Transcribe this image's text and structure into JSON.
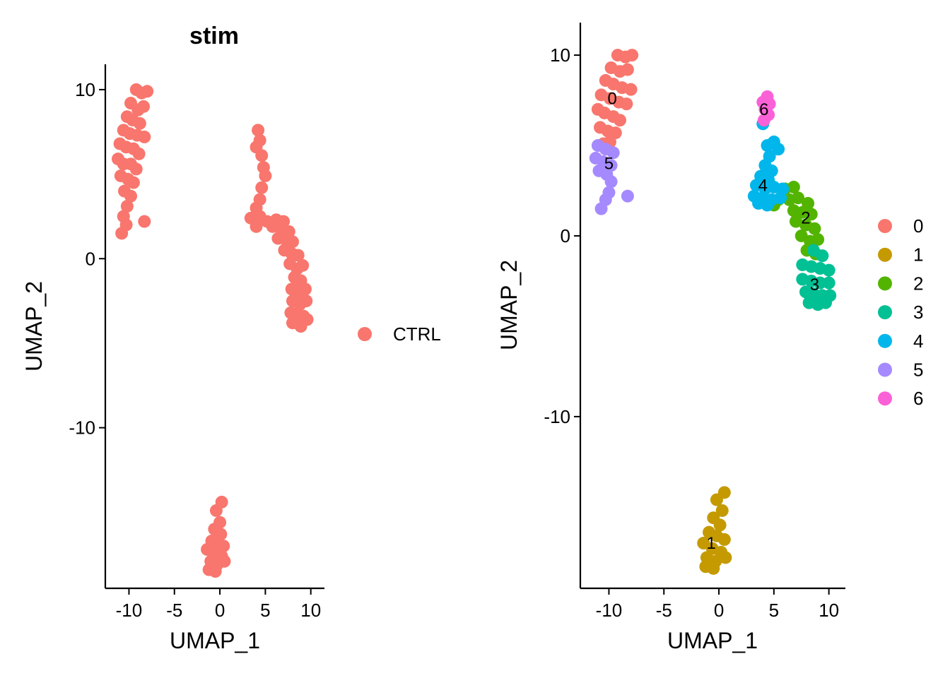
{
  "chart_data": [
    {
      "type": "scatter",
      "title": "stim",
      "xlabel": "UMAP_1",
      "ylabel": "UMAP_2",
      "xlim": [
        -12.6,
        11.5
      ],
      "ylim": [
        -19.5,
        11.5
      ],
      "xticks": [
        -10,
        -5,
        0,
        5,
        10
      ],
      "xtick_labels": [
        "-10",
        "-5",
        "0",
        "5",
        "10"
      ],
      "yticks": [
        10,
        0,
        -10
      ],
      "ytick_labels": [
        "10",
        "0",
        "-10"
      ],
      "grid": false,
      "legend": {
        "position": "right",
        "entries": [
          {
            "label": "CTRL",
            "color": "#F8766D"
          }
        ]
      },
      "series": [
        {
          "name": "CTRL",
          "color": "#F8766D",
          "points": [
            [
              -9.2,
              10.0
            ],
            [
              -8.6,
              9.8
            ],
            [
              -8.0,
              9.9
            ],
            [
              -9.8,
              9.2
            ],
            [
              -9.0,
              8.8
            ],
            [
              -8.4,
              9.0
            ],
            [
              -10.2,
              8.4
            ],
            [
              -9.6,
              8.2
            ],
            [
              -8.8,
              8.0
            ],
            [
              -10.6,
              7.6
            ],
            [
              -9.9,
              7.4
            ],
            [
              -9.1,
              7.3
            ],
            [
              -8.3,
              7.2
            ],
            [
              -11.0,
              6.8
            ],
            [
              -10.3,
              6.6
            ],
            [
              -9.5,
              6.5
            ],
            [
              -8.9,
              6.2
            ],
            [
              -11.2,
              5.9
            ],
            [
              -10.6,
              5.6
            ],
            [
              -9.8,
              5.6
            ],
            [
              -9.2,
              5.3
            ],
            [
              -10.9,
              4.9
            ],
            [
              -10.1,
              4.7
            ],
            [
              -9.5,
              4.5
            ],
            [
              -10.5,
              4.0
            ],
            [
              -9.8,
              3.7
            ],
            [
              -10.2,
              3.1
            ],
            [
              -10.6,
              2.5
            ],
            [
              -10.3,
              2.0
            ],
            [
              -10.8,
              1.5
            ],
            [
              -8.3,
              2.2
            ],
            [
              4.2,
              7.6
            ],
            [
              4.4,
              7.0
            ],
            [
              4.0,
              6.6
            ],
            [
              4.6,
              6.1
            ],
            [
              4.8,
              5.4
            ],
            [
              5.0,
              4.9
            ],
            [
              4.6,
              4.2
            ],
            [
              4.4,
              3.5
            ],
            [
              4.0,
              3.0
            ],
            [
              3.4,
              2.4
            ],
            [
              4.4,
              2.5
            ],
            [
              5.2,
              2.2
            ],
            [
              4.0,
              1.9
            ],
            [
              6.2,
              2.3
            ],
            [
              7.0,
              2.2
            ],
            [
              5.8,
              1.9
            ],
            [
              6.8,
              1.7
            ],
            [
              7.6,
              1.6
            ],
            [
              6.4,
              1.2
            ],
            [
              7.3,
              1.1
            ],
            [
              8.0,
              1.0
            ],
            [
              7.1,
              0.5
            ],
            [
              7.9,
              0.3
            ],
            [
              8.6,
              0.2
            ],
            [
              7.7,
              -0.3
            ],
            [
              8.5,
              -0.6
            ],
            [
              9.1,
              -0.4
            ],
            [
              8.2,
              -1.1
            ],
            [
              8.9,
              -1.3
            ],
            [
              7.9,
              -1.8
            ],
            [
              8.6,
              -2.0
            ],
            [
              9.4,
              -1.8
            ],
            [
              8.0,
              -2.5
            ],
            [
              8.8,
              -2.7
            ],
            [
              9.5,
              -2.5
            ],
            [
              7.8,
              -3.2
            ],
            [
              8.5,
              -3.3
            ],
            [
              9.2,
              -3.4
            ],
            [
              8.0,
              -3.8
            ],
            [
              8.9,
              -4.0
            ],
            [
              9.6,
              -3.6
            ],
            [
              0.2,
              -14.4
            ],
            [
              -0.4,
              -14.9
            ],
            [
              0.0,
              -15.6
            ],
            [
              -0.6,
              -16.0
            ],
            [
              0.1,
              -16.3
            ],
            [
              -0.9,
              -16.7
            ],
            [
              -0.2,
              -16.9
            ],
            [
              0.4,
              -17.0
            ],
            [
              -1.4,
              -17.2
            ],
            [
              -0.6,
              -17.4
            ],
            [
              0.2,
              -17.6
            ],
            [
              -1.0,
              -17.9
            ],
            [
              -0.3,
              -18.1
            ],
            [
              0.5,
              -17.9
            ],
            [
              -1.2,
              -18.4
            ],
            [
              -0.5,
              -18.5
            ]
          ]
        }
      ]
    },
    {
      "type": "scatter",
      "title": "",
      "xlabel": "UMAP_1",
      "ylabel": "UMAP_2",
      "xlim": [
        -12.6,
        11.5
      ],
      "ylim": [
        -19.5,
        11.8
      ],
      "xticks": [
        -10,
        -5,
        0,
        5,
        10
      ],
      "xtick_labels": [
        "-10",
        "-5",
        "0",
        "5",
        "10"
      ],
      "yticks": [
        10,
        0,
        -10
      ],
      "ytick_labels": [
        "10",
        "0",
        "-10"
      ],
      "grid": false,
      "legend": {
        "position": "right",
        "entries": [
          {
            "label": "0",
            "color": "#F8766D"
          },
          {
            "label": "1",
            "color": "#C49A00"
          },
          {
            "label": "2",
            "color": "#53B400"
          },
          {
            "label": "3",
            "color": "#00C094"
          },
          {
            "label": "4",
            "color": "#00B6EB"
          },
          {
            "label": "5",
            "color": "#A58AFF"
          },
          {
            "label": "6",
            "color": "#FB61D7"
          }
        ]
      },
      "series": [
        {
          "name": "0",
          "color": "#F8766D",
          "label_at": [
            -9.7,
            7.6
          ],
          "points": [
            [
              -9.2,
              10.0
            ],
            [
              -8.5,
              9.9
            ],
            [
              -7.9,
              10.0
            ],
            [
              -9.8,
              9.3
            ],
            [
              -9.0,
              9.1
            ],
            [
              -8.3,
              9.2
            ],
            [
              -10.3,
              8.6
            ],
            [
              -9.6,
              8.4
            ],
            [
              -8.8,
              8.2
            ],
            [
              -8.0,
              8.1
            ],
            [
              -10.7,
              7.8
            ],
            [
              -9.9,
              7.6
            ],
            [
              -9.1,
              7.4
            ],
            [
              -8.4,
              7.3
            ],
            [
              -11.0,
              7.0
            ],
            [
              -10.4,
              6.8
            ],
            [
              -9.6,
              6.6
            ],
            [
              -9.0,
              6.4
            ],
            [
              -10.8,
              6.0
            ],
            [
              -10.1,
              5.8
            ],
            [
              -9.4,
              5.7
            ],
            [
              -9.9,
              5.2
            ],
            [
              -10.5,
              5.1
            ]
          ]
        },
        {
          "name": "1",
          "color": "#C49A00",
          "label_at": [
            -0.7,
            -17.0
          ],
          "points": [
            [
              0.5,
              -14.2
            ],
            [
              -0.2,
              -14.6
            ],
            [
              0.3,
              -15.2
            ],
            [
              -0.5,
              -15.6
            ],
            [
              0.1,
              -16.0
            ],
            [
              -0.9,
              -16.4
            ],
            [
              -0.2,
              -16.6
            ],
            [
              0.5,
              -16.8
            ],
            [
              -1.4,
              -17.0
            ],
            [
              -0.6,
              -17.3
            ],
            [
              0.2,
              -17.5
            ],
            [
              -1.1,
              -17.8
            ],
            [
              -0.3,
              -18.0
            ],
            [
              0.6,
              -17.8
            ],
            [
              -1.2,
              -18.3
            ],
            [
              -0.5,
              -18.4
            ]
          ]
        },
        {
          "name": "2",
          "color": "#53B400",
          "label_at": [
            7.9,
            1.0
          ],
          "points": [
            [
              6.0,
              2.6
            ],
            [
              6.8,
              2.7
            ],
            [
              5.4,
              2.0
            ],
            [
              6.4,
              2.0
            ],
            [
              7.2,
              2.1
            ],
            [
              8.1,
              1.8
            ],
            [
              5.0,
              1.7
            ],
            [
              6.8,
              1.4
            ],
            [
              7.6,
              1.3
            ],
            [
              8.4,
              1.2
            ],
            [
              7.0,
              0.8
            ],
            [
              7.9,
              0.6
            ],
            [
              8.7,
              0.4
            ],
            [
              7.5,
              0.0
            ],
            [
              8.3,
              -0.3
            ],
            [
              9.0,
              -0.2
            ],
            [
              8.0,
              -0.8
            ],
            [
              8.8,
              -1.0
            ]
          ]
        },
        {
          "name": "3",
          "color": "#00C094",
          "label_at": [
            8.7,
            -2.7
          ],
          "points": [
            [
              8.6,
              -0.8
            ],
            [
              9.4,
              -1.1
            ],
            [
              7.6,
              -1.6
            ],
            [
              8.4,
              -1.7
            ],
            [
              9.2,
              -1.8
            ],
            [
              10.0,
              -1.9
            ],
            [
              7.6,
              -2.4
            ],
            [
              8.4,
              -2.5
            ],
            [
              9.2,
              -2.6
            ],
            [
              10.0,
              -2.6
            ],
            [
              7.9,
              -3.1
            ],
            [
              8.6,
              -3.2
            ],
            [
              9.4,
              -3.3
            ],
            [
              10.1,
              -3.3
            ],
            [
              8.2,
              -3.7
            ],
            [
              9.0,
              -3.8
            ],
            [
              9.7,
              -3.7
            ]
          ]
        },
        {
          "name": "4",
          "color": "#00B6EB",
          "label_at": [
            4.0,
            2.8
          ],
          "points": [
            [
              4.0,
              6.2
            ],
            [
              5.0,
              5.2
            ],
            [
              4.4,
              5.0
            ],
            [
              5.4,
              4.8
            ],
            [
              4.6,
              4.4
            ],
            [
              4.2,
              3.9
            ],
            [
              4.8,
              3.6
            ],
            [
              3.8,
              3.3
            ],
            [
              4.5,
              3.1
            ],
            [
              3.4,
              2.8
            ],
            [
              4.2,
              2.6
            ],
            [
              5.0,
              2.7
            ],
            [
              5.8,
              2.6
            ],
            [
              3.2,
              2.2
            ],
            [
              4.0,
              2.1
            ],
            [
              4.8,
              2.0
            ],
            [
              5.6,
              2.1
            ],
            [
              3.6,
              1.8
            ],
            [
              4.4,
              1.7
            ]
          ]
        },
        {
          "name": "5",
          "color": "#A58AFF",
          "label_at": [
            -10.0,
            4.0
          ],
          "points": [
            [
              -11.0,
              5.0
            ],
            [
              -10.3,
              4.8
            ],
            [
              -9.6,
              4.6
            ],
            [
              -11.2,
              4.3
            ],
            [
              -10.5,
              4.1
            ],
            [
              -9.8,
              3.9
            ],
            [
              -10.9,
              3.6
            ],
            [
              -10.2,
              3.4
            ],
            [
              -9.8,
              3.0
            ],
            [
              -10.0,
              2.4
            ],
            [
              -10.3,
              2.0
            ],
            [
              -10.7,
              1.5
            ],
            [
              -8.3,
              2.2
            ]
          ]
        },
        {
          "name": "6",
          "color": "#FB61D7",
          "label_at": [
            4.1,
            7.0
          ],
          "points": [
            [
              4.4,
              7.7
            ],
            [
              4.0,
              7.4
            ],
            [
              4.6,
              7.3
            ],
            [
              4.2,
              7.0
            ],
            [
              4.5,
              6.7
            ],
            [
              4.1,
              6.4
            ]
          ]
        }
      ]
    }
  ]
}
